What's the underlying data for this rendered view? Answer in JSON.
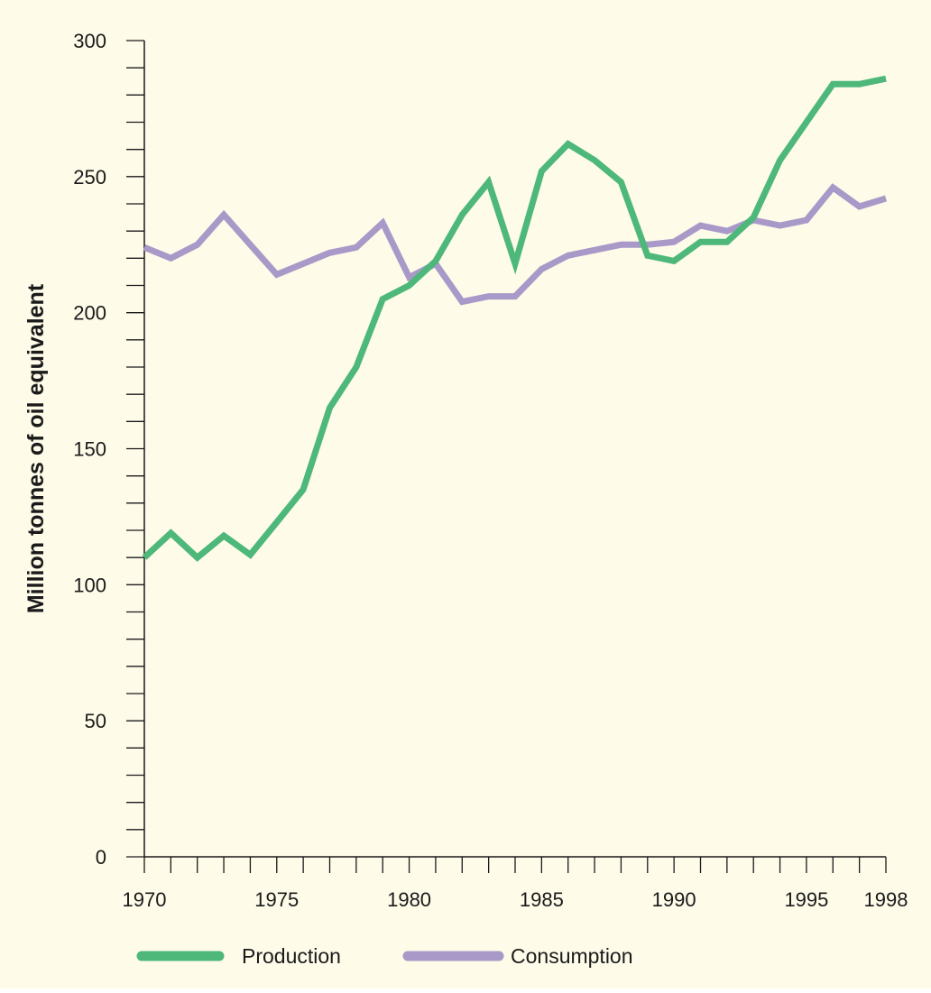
{
  "colors": {
    "background": "#FEFBE9",
    "axis": "#1A1A1A",
    "text": "#1A1A1A",
    "production": "#4DB87A",
    "consumption": "#A899C8"
  },
  "chart_data": {
    "type": "line",
    "title": "",
    "xlabel": "",
    "ylabel": "Million tonnes of oil equivalent",
    "xlim": [
      1970,
      1998
    ],
    "ylim": [
      0,
      300
    ],
    "y_major_ticks": [
      0,
      50,
      100,
      150,
      200,
      250,
      300
    ],
    "y_minor_step": 10,
    "x_tick_labels": [
      "1970",
      "1975",
      "1980",
      "1985",
      "1990",
      "1995",
      "1998"
    ],
    "x_tick_values": [
      1970,
      1975,
      1980,
      1985,
      1990,
      1995,
      1998
    ],
    "x_minor_step": 1,
    "grid": false,
    "legend_position": "bottom",
    "x": [
      1970,
      1971,
      1972,
      1973,
      1974,
      1975,
      1976,
      1977,
      1978,
      1979,
      1980,
      1981,
      1982,
      1983,
      1984,
      1985,
      1986,
      1987,
      1988,
      1989,
      1990,
      1991,
      1992,
      1993,
      1994,
      1995,
      1996,
      1997,
      1998
    ],
    "series": [
      {
        "name": "Production",
        "color_key": "production",
        "values": [
          110,
          119,
          110,
          118,
          111,
          123,
          135,
          165,
          180,
          205,
          210,
          219,
          236,
          248,
          218,
          252,
          262,
          256,
          248,
          221,
          219,
          226,
          226,
          235,
          256,
          270,
          284,
          284,
          286
        ]
      },
      {
        "name": "Consumption",
        "color_key": "consumption",
        "values": [
          224,
          220,
          225,
          236,
          225,
          214,
          218,
          222,
          224,
          233,
          213,
          218,
          204,
          206,
          206,
          216,
          221,
          223,
          225,
          225,
          226,
          232,
          230,
          234,
          232,
          234,
          246,
          239,
          242
        ]
      }
    ]
  }
}
